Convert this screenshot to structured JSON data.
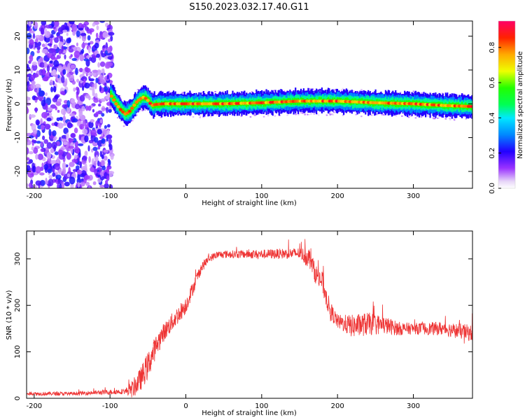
{
  "chart_data": [
    {
      "type": "heatmap",
      "title": "S150.2023.032.17.40.G11",
      "xlabel": "Height of straight line (km)",
      "ylabel": "Frequency (Hz)",
      "xlim": [
        -210,
        378
      ],
      "ylim": [
        -25,
        24.5
      ],
      "xticks": [
        -200,
        -100,
        0,
        100,
        200,
        300
      ],
      "yticks": [
        -20,
        -10,
        0,
        10,
        20
      ],
      "colorbar": {
        "label": "Normalized spectral amplitude",
        "ticks": [
          "0.0",
          "0.2",
          "0.4",
          "0.6",
          "0.8"
        ],
        "range": [
          0,
          0.95
        ]
      },
      "noise_region_x": [
        -210,
        -100
      ],
      "ridge": {
        "x": [
          -100,
          -92,
          -85,
          -80,
          -75,
          -70,
          -65,
          -60,
          -55,
          -50,
          -45,
          -40,
          -30,
          -20,
          0,
          50,
          100,
          150,
          200,
          250,
          300,
          340,
          378
        ],
        "y": [
          3,
          0,
          -2,
          -3,
          -2.5,
          -1,
          0.5,
          1.5,
          2,
          1,
          -0.5,
          -0.2,
          0,
          0,
          0,
          0,
          0.3,
          0.8,
          0.8,
          0.3,
          0,
          -0.5,
          -0.8
        ]
      }
    },
    {
      "type": "line",
      "title": "",
      "xlabel": "Height of straight line (km)",
      "ylabel": "SNR (10 * v/v)",
      "xlim": [
        -210,
        378
      ],
      "ylim": [
        0,
        360
      ],
      "xticks": [
        -200,
        -100,
        0,
        100,
        200,
        300
      ],
      "yticks": [
        0,
        100,
        200,
        300
      ],
      "series": [
        {
          "color": "#ee3333",
          "envelope": {
            "x": [
              -210,
              -150,
              -80,
              -70,
              -60,
              -50,
              -40,
              -30,
              -20,
              -10,
              0,
              10,
              20,
              30,
              40,
              50,
              100,
              150,
              165,
              170,
              180,
              190,
              200,
              220,
              240,
              260,
              280,
              300,
              340,
              378
            ],
            "y": [
              10,
              10,
              15,
              20,
              40,
              70,
              110,
              140,
              160,
              180,
              200,
              240,
              280,
              300,
              308,
              310,
              310,
              312,
              300,
              270,
              250,
              190,
              165,
              155,
              160,
              158,
              150,
              150,
              150,
              140
            ],
            "jitter": [
              4,
              4,
              6,
              20,
              25,
              30,
              25,
              20,
              20,
              20,
              18,
              15,
              12,
              8,
              8,
              8,
              10,
              12,
              25,
              20,
              25,
              20,
              15,
              25,
              25,
              20,
              15,
              12,
              15,
              18
            ]
          }
        }
      ]
    }
  ]
}
